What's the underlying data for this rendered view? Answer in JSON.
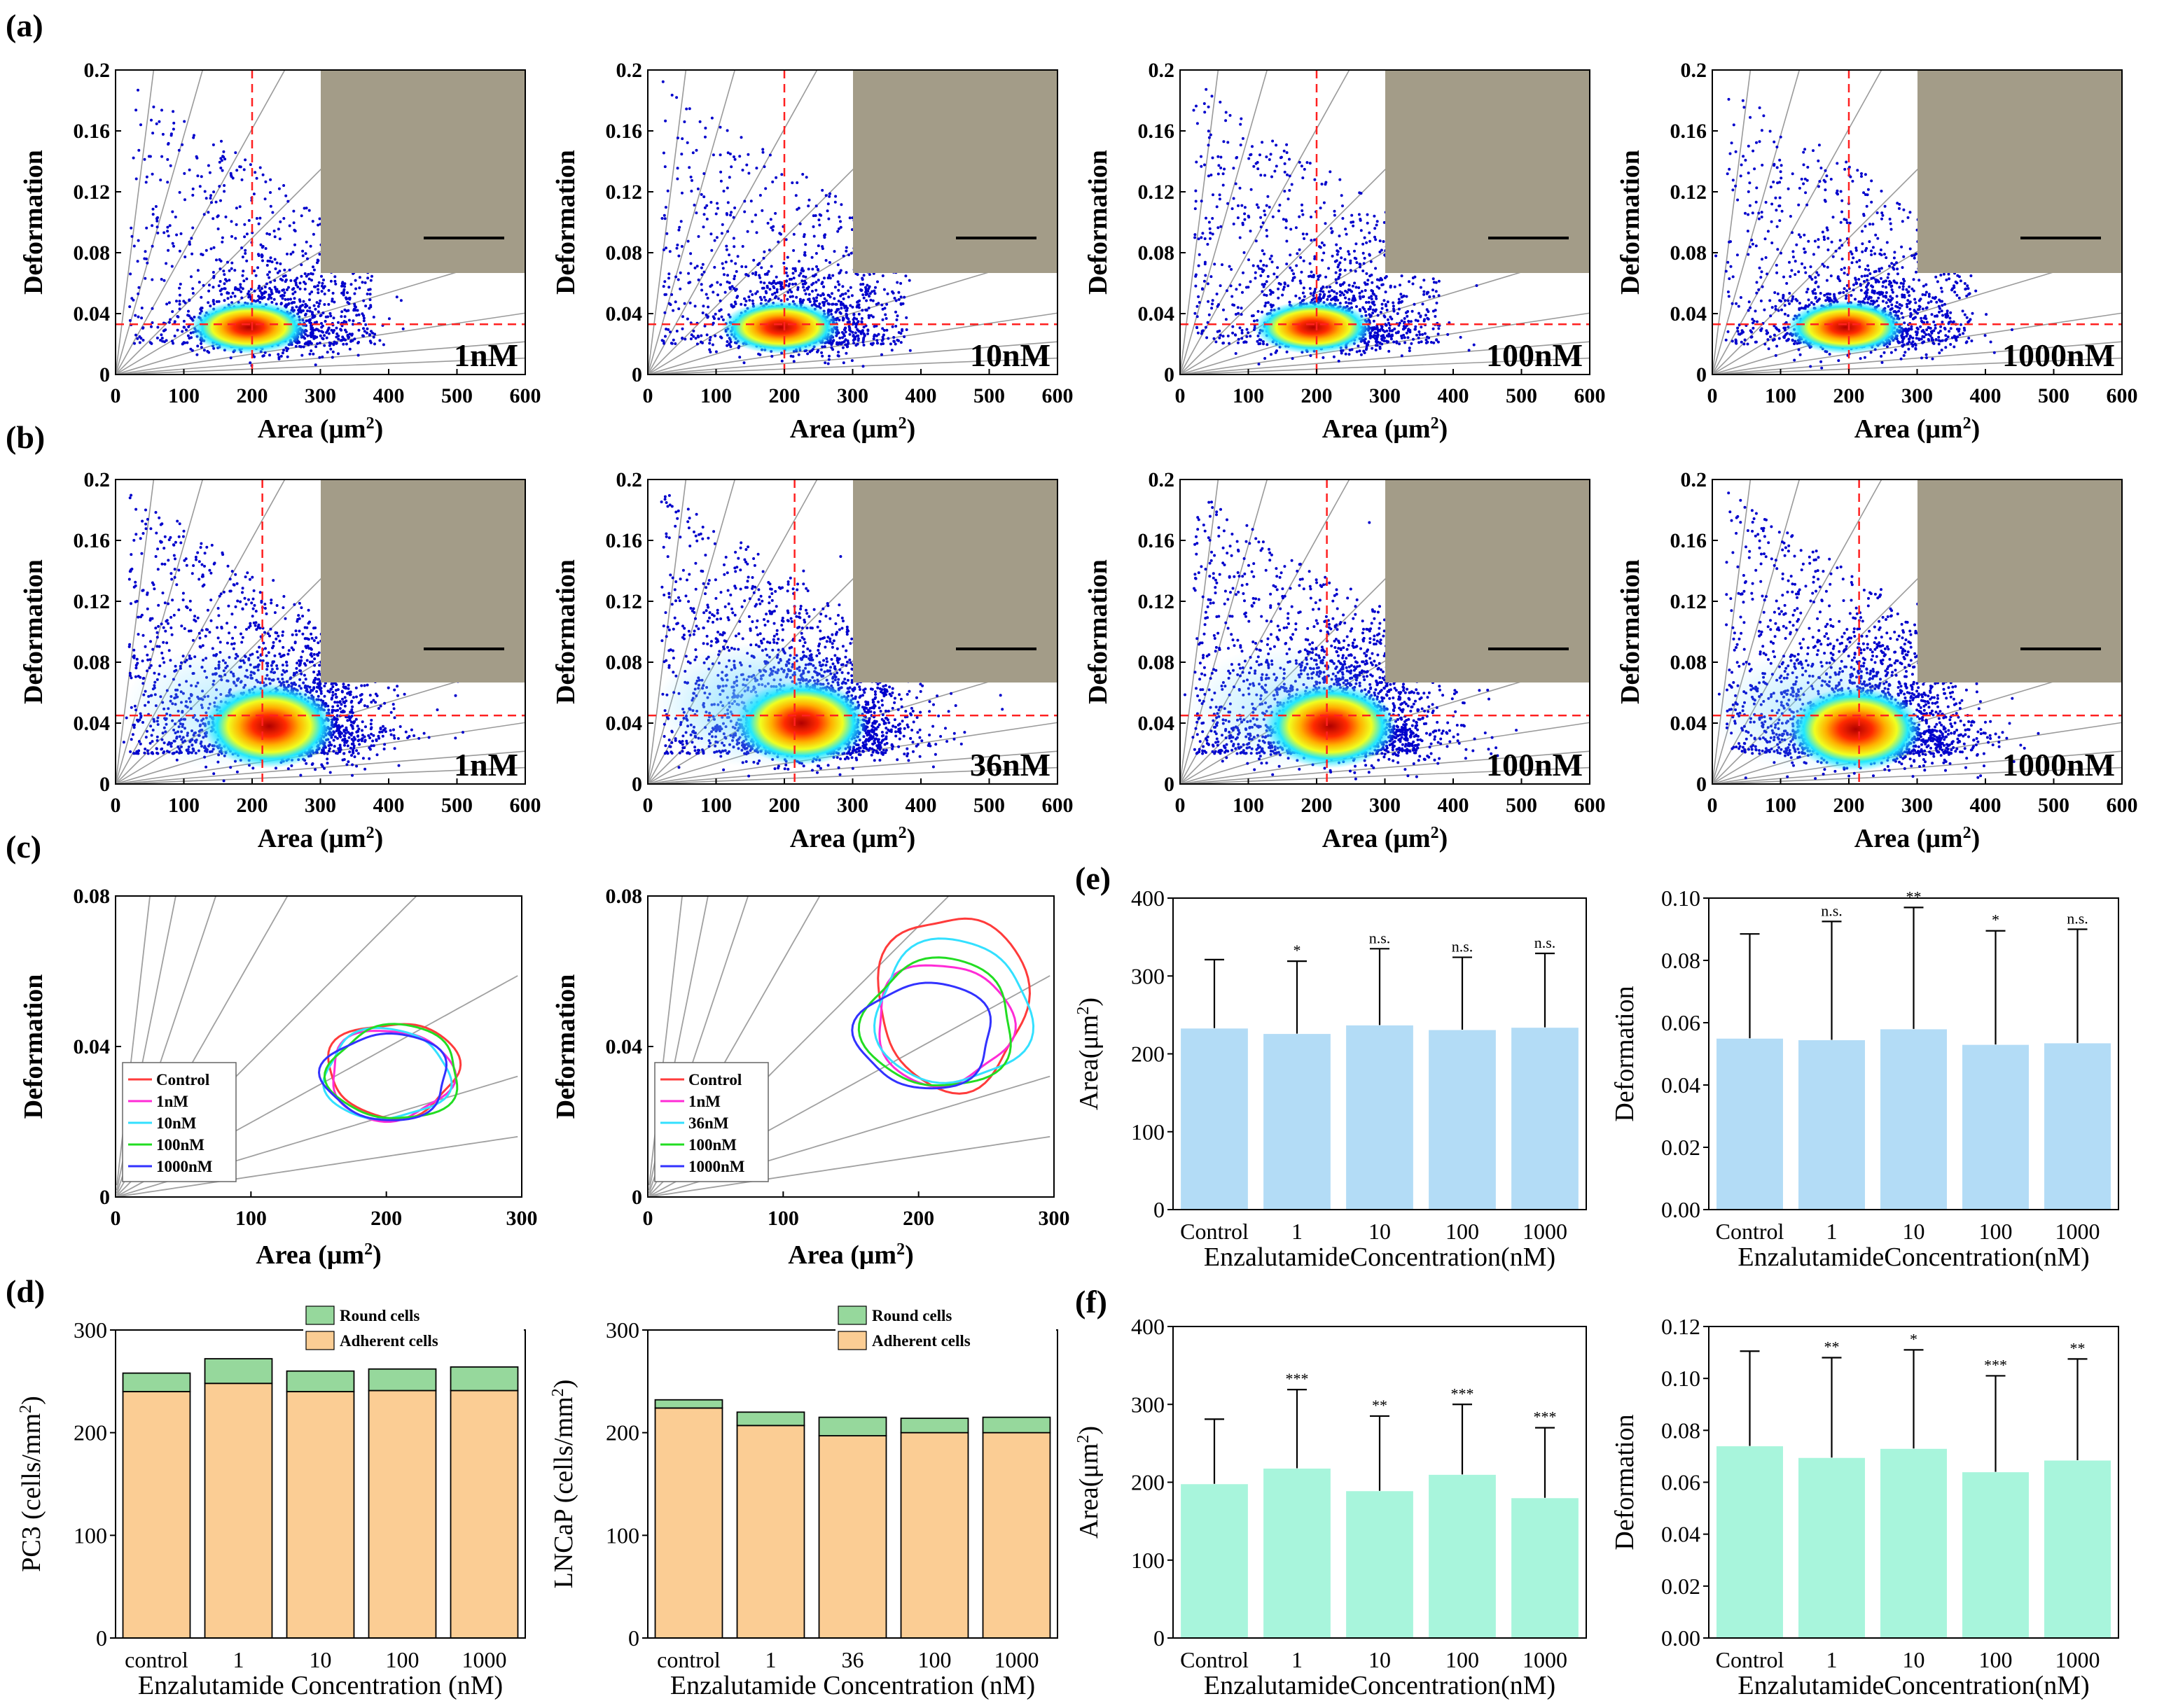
{
  "panel_labels": {
    "a": "(a)",
    "b": "(b)",
    "c": "(c)",
    "d": "(d)",
    "e": "(e)",
    "f": "(f)"
  },
  "colors": {
    "scatter_low": "#0000cc",
    "scatter_mid": "#00ccff",
    "scatter_high": "#cc0000",
    "red_line": "#ff2020",
    "bar_blue": "#b3dcf6",
    "bar_teal": "#a8f5dc",
    "round": "#96d89c",
    "adherent": "#fbcd94",
    "inset": "#a39c88"
  },
  "inset_images": {
    "description": "cell micrograph",
    "color": "#a39c88"
  },
  "chart_data": [
    {
      "id": "a1",
      "type": "scatter",
      "xlabel": "Area (μm²)",
      "ylabel": "Deformation",
      "xlim": [
        0,
        600
      ],
      "ylim": [
        0,
        0.2
      ],
      "xticks": [
        "0",
        "100",
        "200",
        "300",
        "400",
        "500",
        "600"
      ],
      "yticks": [
        "0",
        "0.04",
        "0.08",
        "0.12",
        "0.16",
        "0.2"
      ],
      "concentration_label": "1nM",
      "vline": 200,
      "hline": 0.033,
      "center": [
        195,
        0.031
      ],
      "inset": "cell micrograph"
    },
    {
      "id": "a2",
      "type": "scatter",
      "xlabel": "Area (μm²)",
      "ylabel": "Deformation",
      "xlim": [
        0,
        600
      ],
      "ylim": [
        0,
        0.2
      ],
      "xticks": [
        "0",
        "100",
        "200",
        "300",
        "400",
        "500",
        "600"
      ],
      "yticks": [
        "0",
        "0.04",
        "0.08",
        "0.12",
        "0.16",
        "0.2"
      ],
      "concentration_label": "10nM",
      "vline": 200,
      "hline": 0.033,
      "center": [
        195,
        0.031
      ],
      "inset": "cell micrograph"
    },
    {
      "id": "a3",
      "type": "scatter",
      "xlabel": "Area (μm²)",
      "ylabel": "Deformation",
      "xlim": [
        0,
        600
      ],
      "ylim": [
        0,
        0.2
      ],
      "xticks": [
        "0",
        "100",
        "200",
        "300",
        "400",
        "500",
        "600"
      ],
      "yticks": [
        "0",
        "0.04",
        "0.08",
        "0.12",
        "0.16",
        "0.2"
      ],
      "concentration_label": "100nM",
      "vline": 200,
      "hline": 0.033,
      "center": [
        195,
        0.031
      ],
      "inset": "cell micrograph"
    },
    {
      "id": "a4",
      "type": "scatter",
      "xlabel": "Area (μm²)",
      "ylabel": "Deformation",
      "xlim": [
        0,
        600
      ],
      "ylim": [
        0,
        0.2
      ],
      "xticks": [
        "0",
        "100",
        "200",
        "300",
        "400",
        "500",
        "600"
      ],
      "yticks": [
        "0",
        "0.04",
        "0.08",
        "0.12",
        "0.16",
        "0.2"
      ],
      "concentration_label": "1000nM",
      "vline": 200,
      "hline": 0.033,
      "center": [
        195,
        0.031
      ],
      "inset": "cell micrograph"
    },
    {
      "id": "b1",
      "type": "scatter",
      "xlabel": "Area (μm²)",
      "ylabel": "Deformation",
      "xlim": [
        0,
        600
      ],
      "ylim": [
        0,
        0.2
      ],
      "xticks": [
        "0",
        "100",
        "200",
        "300",
        "400",
        "500",
        "600"
      ],
      "yticks": [
        "0",
        "0.04",
        "0.08",
        "0.12",
        "0.16",
        "0.2"
      ],
      "concentration_label": "1nM",
      "vline": 215,
      "hline": 0.045,
      "center": [
        225,
        0.038
      ],
      "inset": "cell micrograph"
    },
    {
      "id": "b2",
      "type": "scatter",
      "xlabel": "Area (μm²)",
      "ylabel": "Deformation",
      "xlim": [
        0,
        600
      ],
      "ylim": [
        0,
        0.2
      ],
      "xticks": [
        "0",
        "100",
        "200",
        "300",
        "400",
        "500",
        "600"
      ],
      "yticks": [
        "0",
        "0.04",
        "0.08",
        "0.12",
        "0.16",
        "0.2"
      ],
      "concentration_label": "36nM",
      "vline": 215,
      "hline": 0.045,
      "center": [
        225,
        0.04
      ],
      "inset": "cell micrograph"
    },
    {
      "id": "b3",
      "type": "scatter",
      "xlabel": "Area (μm²)",
      "ylabel": "Deformation",
      "xlim": [
        0,
        600
      ],
      "ylim": [
        0,
        0.2
      ],
      "xticks": [
        "0",
        "100",
        "200",
        "300",
        "400",
        "500",
        "600"
      ],
      "yticks": [
        "0",
        "0.04",
        "0.08",
        "0.12",
        "0.16",
        "0.2"
      ],
      "concentration_label": "100nM",
      "vline": 215,
      "hline": 0.045,
      "center": [
        220,
        0.038
      ],
      "inset": "cell micrograph"
    },
    {
      "id": "b4",
      "type": "scatter",
      "xlabel": "Area (μm²)",
      "ylabel": "Deformation",
      "xlim": [
        0,
        600
      ],
      "ylim": [
        0,
        0.2
      ],
      "xticks": [
        "0",
        "100",
        "200",
        "300",
        "400",
        "500",
        "600"
      ],
      "yticks": [
        "0",
        "0.04",
        "0.08",
        "0.12",
        "0.16",
        "0.2"
      ],
      "concentration_label": "1000nM",
      "vline": 215,
      "hline": 0.045,
      "center": [
        210,
        0.036
      ],
      "inset": "cell micrograph"
    },
    {
      "id": "c1",
      "type": "contour",
      "xlabel": "Area (μm²)",
      "ylabel": "Deformation",
      "xlim": [
        0,
        300
      ],
      "ylim": [
        0,
        0.08
      ],
      "xticks": [
        "0",
        "100",
        "200",
        "300"
      ],
      "yticks": [
        "0",
        "0.04",
        "0.08"
      ],
      "series": [
        {
          "name": "Control",
          "color": "#ff3b3b",
          "cx": 205,
          "cy": 0.034,
          "rx": 48,
          "ry": 0.0125
        },
        {
          "name": "1nM",
          "color": "#ff2bd6",
          "cx": 203,
          "cy": 0.0325,
          "rx": 45,
          "ry": 0.012
        },
        {
          "name": "10nM",
          "color": "#33e0ff",
          "cx": 200,
          "cy": 0.0325,
          "rx": 46,
          "ry": 0.012
        },
        {
          "name": "100nM",
          "color": "#22dd22",
          "cx": 206,
          "cy": 0.033,
          "rx": 48,
          "ry": 0.0125
        },
        {
          "name": "1000nM",
          "color": "#3232ff",
          "cx": 200,
          "cy": 0.032,
          "rx": 46,
          "ry": 0.0115
        }
      ]
    },
    {
      "id": "c2",
      "type": "contour",
      "xlabel": "Area (μm²)",
      "ylabel": "Deformation",
      "xlim": [
        0,
        300
      ],
      "ylim": [
        0,
        0.08
      ],
      "xticks": [
        "0",
        "100",
        "200",
        "300"
      ],
      "yticks": [
        "0",
        "0.04",
        "0.08"
      ],
      "series": [
        {
          "name": "Control",
          "color": "#ff3b3b",
          "cx": 225,
          "cy": 0.052,
          "rx": 55,
          "ry": 0.023
        },
        {
          "name": "1nM",
          "color": "#ff2bd6",
          "cx": 218,
          "cy": 0.046,
          "rx": 50,
          "ry": 0.016
        },
        {
          "name": "36nM",
          "color": "#33e0ff",
          "cx": 225,
          "cy": 0.049,
          "rx": 57,
          "ry": 0.019
        },
        {
          "name": "100nM",
          "color": "#22dd22",
          "cx": 215,
          "cy": 0.046,
          "rx": 55,
          "ry": 0.017
        },
        {
          "name": "1000nM",
          "color": "#3232ff",
          "cx": 205,
          "cy": 0.043,
          "rx": 50,
          "ry": 0.014
        }
      ]
    },
    {
      "id": "d1",
      "type": "bar",
      "stacked": true,
      "ylabel": "PC3 (cells/mm²)",
      "xlabel": "Enzalutamide Concentration (nM)",
      "ylim": [
        0,
        300
      ],
      "yticks": [
        "0",
        "100",
        "200",
        "300"
      ],
      "categories": [
        "control",
        "1",
        "10",
        "100",
        "1000"
      ],
      "series": [
        {
          "name": "Adherent cells",
          "color": "#fbcd94",
          "values": [
            240,
            248,
            240,
            241,
            241
          ]
        },
        {
          "name": "Round cells",
          "color": "#96d89c",
          "values": [
            18,
            24,
            20,
            21,
            23
          ]
        }
      ]
    },
    {
      "id": "d2",
      "type": "bar",
      "stacked": true,
      "ylabel": "LNCaP (cells/mm²)",
      "xlabel": "Enzalutamide Concentration (nM)",
      "ylim": [
        0,
        300
      ],
      "yticks": [
        "0",
        "100",
        "200",
        "300"
      ],
      "categories": [
        "control",
        "1",
        "36",
        "100",
        "1000"
      ],
      "series": [
        {
          "name": "Adherent cells",
          "color": "#fbcd94",
          "values": [
            224,
            207,
            197,
            200,
            200
          ]
        },
        {
          "name": "Round cells",
          "color": "#96d89c",
          "values": [
            8,
            13,
            18,
            14,
            15
          ]
        }
      ]
    },
    {
      "id": "e1",
      "type": "bar",
      "ylabel": "Area(μm²)",
      "xlabel": "EnzalutamideConcentration(nM)",
      "ylim": [
        0,
        400
      ],
      "yticks": [
        "0",
        "100",
        "200",
        "300",
        "400"
      ],
      "categories": [
        "Control",
        "1",
        "10",
        "100",
        "1000"
      ],
      "color": "#b3dcf6",
      "values": [
        233,
        226,
        237,
        231,
        234
      ],
      "errors": [
        88,
        93,
        98,
        93,
        95
      ],
      "significance": [
        "",
        "*",
        "n.s.",
        "n.s.",
        "n.s."
      ]
    },
    {
      "id": "e2",
      "type": "bar",
      "ylabel": "Deformation",
      "xlabel": "EnzalutamideConcentration(nM)",
      "ylim": [
        0,
        0.1
      ],
      "yticks": [
        "0.00",
        "0.02",
        "0.04",
        "0.06",
        "0.08",
        "0.10"
      ],
      "categories": [
        "Control",
        "1",
        "10",
        "100",
        "1000"
      ],
      "color": "#b3dcf6",
      "values": [
        0.055,
        0.0545,
        0.058,
        0.053,
        0.0535
      ],
      "errors": [
        0.0335,
        0.038,
        0.039,
        0.0365,
        0.0365
      ],
      "significance": [
        "",
        "n.s.",
        "**",
        "*",
        "n.s."
      ]
    },
    {
      "id": "f1",
      "type": "bar",
      "ylabel": "Area(μm²)",
      "xlabel": "EnzalutamideConcentration(nM)",
      "ylim": [
        0,
        400
      ],
      "yticks": [
        "0",
        "100",
        "200",
        "300",
        "400"
      ],
      "categories": [
        "Control",
        "1",
        "10",
        "100",
        "1000"
      ],
      "color": "#a8f5dc",
      "values": [
        198,
        218,
        189,
        210,
        180
      ],
      "errors": [
        83,
        101,
        96,
        90,
        90
      ],
      "significance": [
        "",
        "***",
        "**",
        "***",
        "***"
      ]
    },
    {
      "id": "f2",
      "type": "bar",
      "ylabel": "Deformation",
      "xlabel": "EnzalutamideConcentration(nM)",
      "ylim": [
        0,
        0.12
      ],
      "yticks": [
        "0.00",
        "0.02",
        "0.04",
        "0.06",
        "0.08",
        "0.10",
        "0.12"
      ],
      "categories": [
        "Control",
        "1",
        "10",
        "100",
        "1000"
      ],
      "color": "#a8f5dc",
      "values": [
        0.074,
        0.0695,
        0.073,
        0.064,
        0.0685
      ],
      "errors": [
        0.0365,
        0.0385,
        0.038,
        0.037,
        0.039
      ],
      "significance": [
        "",
        "**",
        "*",
        "***",
        "**"
      ]
    }
  ]
}
